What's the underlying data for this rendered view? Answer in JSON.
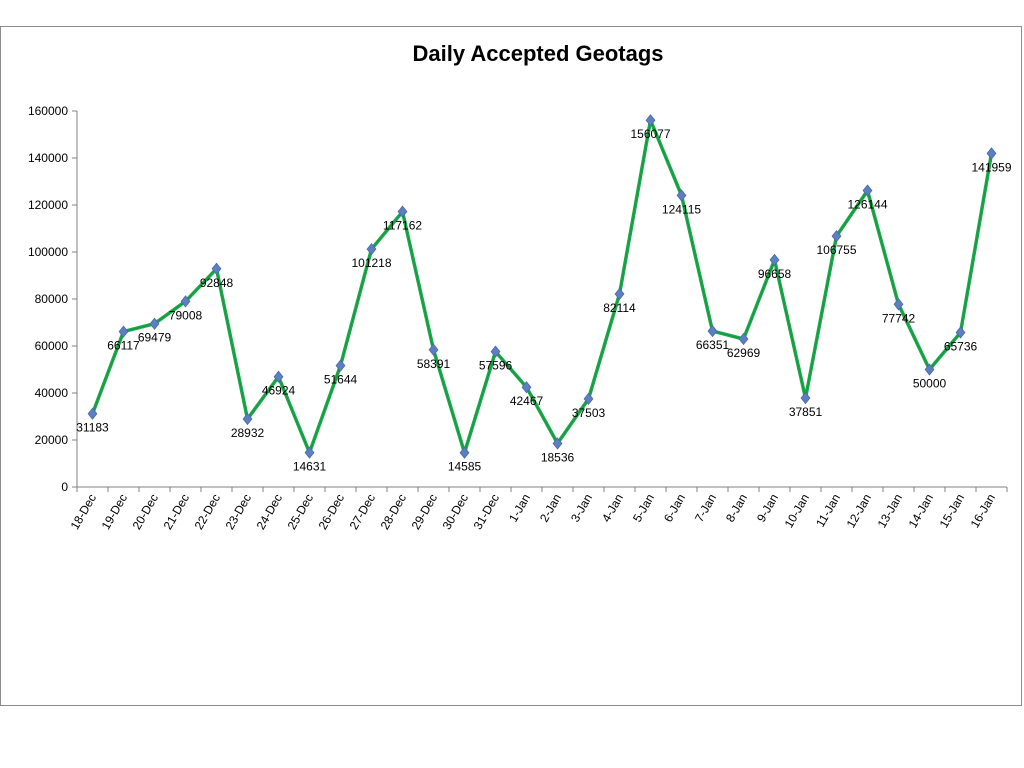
{
  "chart_data": {
    "type": "line",
    "title": "Daily Accepted Geotags",
    "xlabel": "",
    "ylabel": "",
    "ylim": [
      0,
      160000
    ],
    "yticks": [
      "0",
      "20000",
      "40000",
      "60000",
      "80000",
      "100000",
      "120000",
      "140000",
      "160000"
    ],
    "grid": false,
    "legend": "none",
    "categories": [
      "18-Dec",
      "19-Dec",
      "20-Dec",
      "21-Dec",
      "22-Dec",
      "23-Dec",
      "24-Dec",
      "25-Dec",
      "26-Dec",
      "27-Dec",
      "28-Dec",
      "29-Dec",
      "30-Dec",
      "31-Dec",
      "1-Jan",
      "2-Jan",
      "3-Jan",
      "4-Jan",
      "5-Jan",
      "6-Jan",
      "7-Jan",
      "8-Jan",
      "9-Jan",
      "10-Jan",
      "11-Jan",
      "12-Jan",
      "13-Jan",
      "14-Jan",
      "15-Jan",
      "16-Jan"
    ],
    "series": [
      {
        "values": [
          31183,
          66117,
          69479,
          79008,
          92848,
          28932,
          46924,
          14631,
          51644,
          101218,
          117162,
          58391,
          14585,
          57596,
          42467,
          18536,
          37503,
          82114,
          156077,
          124115,
          66351,
          62969,
          96658,
          37851,
          106755,
          126144,
          77742,
          50000,
          65736,
          141959
        ],
        "line_color": "#1aaa4a",
        "marker_color": "#5b7fc0",
        "marker": "diamond"
      }
    ]
  }
}
